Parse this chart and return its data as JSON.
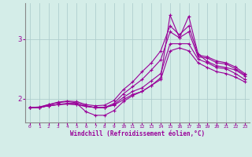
{
  "xlabel": "Windchill (Refroidissement éolien,°C)",
  "x_ticks": [
    0,
    1,
    2,
    3,
    4,
    5,
    6,
    7,
    8,
    9,
    10,
    11,
    12,
    13,
    14,
    15,
    16,
    17,
    18,
    19,
    20,
    21,
    22,
    23
  ],
  "y_ticks": [
    2,
    3
  ],
  "ylim": [
    1.6,
    3.6
  ],
  "xlim": [
    -0.5,
    23.5
  ],
  "bg_color": "#d4ede8",
  "line_color": "#990099",
  "grid_color": "#b0cece",
  "series": [
    [
      1.85,
      1.85,
      1.88,
      1.9,
      1.92,
      1.92,
      1.78,
      1.72,
      1.72,
      1.8,
      1.95,
      2.05,
      2.12,
      2.22,
      2.35,
      3.4,
      3.02,
      3.38,
      2.75,
      2.62,
      2.55,
      2.52,
      2.48,
      2.38
    ],
    [
      1.85,
      1.85,
      1.9,
      1.93,
      1.95,
      1.93,
      1.88,
      1.85,
      1.85,
      1.92,
      2.08,
      2.2,
      2.32,
      2.48,
      2.65,
      3.12,
      3.02,
      3.12,
      2.7,
      2.68,
      2.6,
      2.58,
      2.5,
      2.4
    ],
    [
      1.85,
      1.86,
      1.9,
      1.94,
      1.96,
      1.95,
      1.9,
      1.88,
      1.89,
      1.97,
      2.15,
      2.28,
      2.45,
      2.6,
      2.8,
      3.22,
      3.07,
      3.22,
      2.73,
      2.7,
      2.63,
      2.6,
      2.53,
      2.42
    ],
    [
      1.85,
      1.85,
      1.88,
      1.9,
      1.91,
      1.9,
      1.87,
      1.85,
      1.85,
      1.9,
      2.02,
      2.12,
      2.18,
      2.3,
      2.42,
      2.92,
      2.92,
      2.92,
      2.66,
      2.6,
      2.52,
      2.5,
      2.42,
      2.32
    ],
    [
      1.85,
      1.85,
      1.88,
      1.9,
      1.91,
      1.9,
      1.87,
      1.85,
      1.85,
      1.89,
      1.98,
      2.07,
      2.12,
      2.22,
      2.32,
      2.8,
      2.85,
      2.8,
      2.6,
      2.52,
      2.45,
      2.42,
      2.36,
      2.28
    ]
  ]
}
